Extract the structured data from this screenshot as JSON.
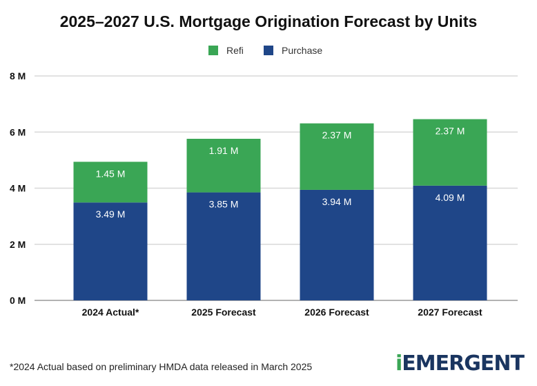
{
  "chart_data": {
    "type": "bar",
    "stacked": true,
    "title": "2025–2027 U.S. Mortgage Origination Forecast by Units",
    "categories": [
      "2024 Actual*",
      "2025 Forecast",
      "2026 Forecast",
      "2027 Forecast"
    ],
    "series": [
      {
        "name": "Purchase",
        "values": [
          3.49,
          3.85,
          3.94,
          4.09
        ],
        "labels": [
          "3.49 M",
          "3.85 M",
          "3.94 M",
          "4.09 M"
        ],
        "color": "#1f4688"
      },
      {
        "name": "Refi",
        "values": [
          1.45,
          1.91,
          2.37,
          2.37
        ],
        "labels": [
          "1.45 M",
          "1.91 M",
          "2.37 M",
          "2.37 M"
        ],
        "color": "#3aa655"
      }
    ],
    "legend": [
      "Refi",
      "Purchase"
    ],
    "legend_placement": "top",
    "ylim": [
      0,
      8
    ],
    "yticks": [
      "0 M",
      "2 M",
      "4 M",
      "6 M",
      "8 M"
    ],
    "grid": true,
    "xlabel": "",
    "ylabel": ""
  },
  "footnote": "*2024 Actual based on preliminary HMDA data released in March 2025",
  "logo": {
    "prefix": "i",
    "text": "EMERGENT"
  }
}
